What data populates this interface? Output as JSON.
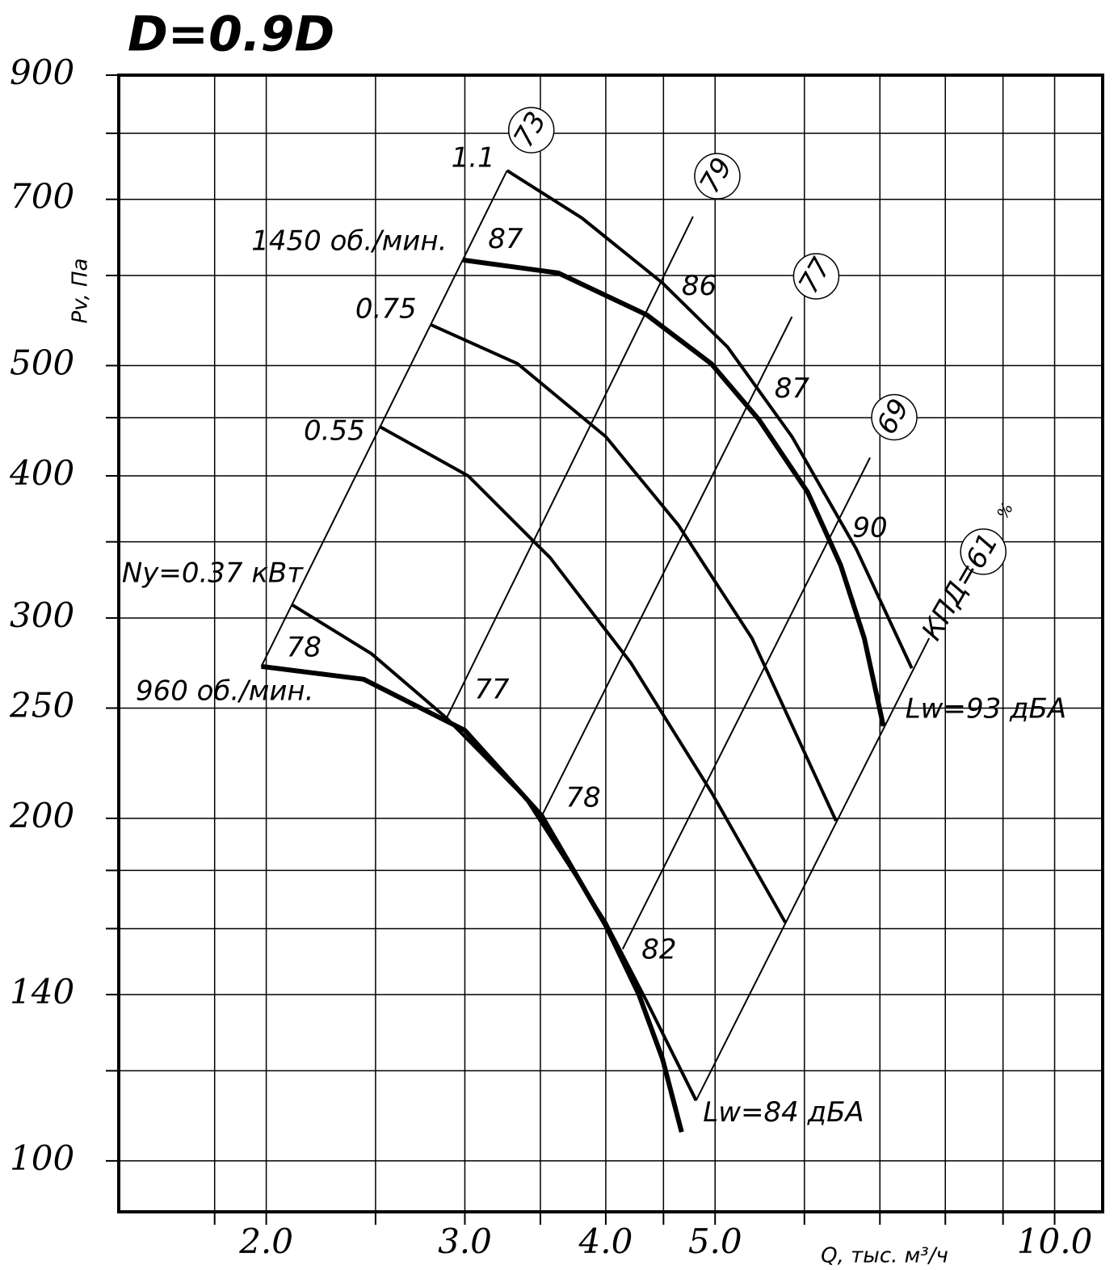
{
  "chart_data": {
    "type": "line",
    "title": "D=0.9D",
    "x_label": "Q, тыс. м³/ч",
    "y_label": "Pv, Па",
    "xscale": "log",
    "yscale": "log",
    "xlim": [
      1.48,
      11.03
    ],
    "ylim": [
      90.2,
      900
    ],
    "xticks": [
      {
        "value": 2,
        "label": "2.0"
      },
      {
        "value": 3,
        "label": "3.0"
      },
      {
        "value": 4,
        "label": "4.0"
      },
      {
        "value": 5,
        "label": "5.0"
      },
      {
        "value": 10,
        "label": "10.0"
      }
    ],
    "x_minor_ticks": [
      1.8,
      2.5,
      3.5,
      4.5,
      6,
      7,
      8,
      9
    ],
    "yticks": [
      900,
      700,
      500,
      400,
      300,
      250,
      200,
      140,
      100
    ],
    "y_minor_ticks": [
      800,
      600,
      450,
      350,
      180,
      160,
      120
    ],
    "speed_curves": [
      {
        "name": "1450 об./мин.",
        "x": [
          2.99,
          3.63,
          4.35,
          4.96,
          5.47,
          6.04,
          6.46,
          6.78,
          7.05
        ],
        "y": [
          619,
          603,
          554,
          502,
          448,
          387,
          334,
          288,
          241
        ]
      },
      {
        "name": "960 об./мин.",
        "x": [
          1.98,
          2.44,
          3.0,
          3.51,
          4.0,
          4.28,
          4.49,
          4.67
        ],
        "y": [
          272,
          265,
          239,
          201,
          161,
          140,
          123,
          106
        ]
      }
    ],
    "power_curves": [
      {
        "name": "1.1",
        "x": [
          3.27,
          3.81,
          4.49,
          5.13,
          5.85,
          6.67,
          7.47
        ],
        "y": [
          742,
          674,
          591,
          519,
          433,
          345,
          271
        ]
      },
      {
        "name": "0.75",
        "x": [
          2.8,
          3.34,
          4.0,
          4.64,
          5.39,
          6.4
        ],
        "y": [
          543,
          502,
          433,
          362,
          288,
          199
        ]
      },
      {
        "name": "0.55",
        "x": [
          2.52,
          3.02,
          3.57,
          4.21,
          4.96,
          5.77
        ],
        "y": [
          442,
          400,
          339,
          274,
          211,
          162
        ]
      },
      {
        "name": "Ny=0.37 кВт",
        "x": [
          2.11,
          2.48,
          2.89,
          3.4,
          4.0,
          4.35,
          4.81
        ],
        "y": [
          308,
          279,
          245,
          208,
          162,
          138,
          113
        ]
      }
    ],
    "efficiency_lines": [
      {
        "name": "73",
        "x": [
          1.98,
          3.27
        ],
        "y": [
          272,
          742
        ]
      },
      {
        "name": "79",
        "x": [
          2.89,
          4.78
        ],
        "y": [
          245,
          676
        ]
      },
      {
        "name": "77",
        "x": [
          3.51,
          5.85
        ],
        "y": [
          201,
          552
        ]
      },
      {
        "name": "69",
        "x": [
          4.14,
          6.86
        ],
        "y": [
          153.5,
          415
        ]
      },
      {
        "name": "61",
        "x": [
          4.81,
          7.74
        ],
        "y": [
          113,
          288
        ]
      }
    ],
    "efficiency_prefix": "КПД=",
    "efficiency_unit": "%",
    "annotations": [
      {
        "text": "87",
        "x": 3.26,
        "y": 644
      },
      {
        "text": "86",
        "x": 4.84,
        "y": 586
      },
      {
        "text": "87",
        "x": 5.85,
        "y": 476
      },
      {
        "text": "90",
        "x": 6.86,
        "y": 359
      },
      {
        "text": "78",
        "x": 2.16,
        "y": 282
      },
      {
        "text": "77",
        "x": 3.17,
        "y": 259
      },
      {
        "text": "78",
        "x": 3.82,
        "y": 208
      },
      {
        "text": "82",
        "x": 4.46,
        "y": 153
      },
      {
        "text": "Lw=93 дБА",
        "x": 8.69,
        "y": 249
      },
      {
        "text": "Lw=84 дБА",
        "x": 5.75,
        "y": 110
      }
    ]
  }
}
